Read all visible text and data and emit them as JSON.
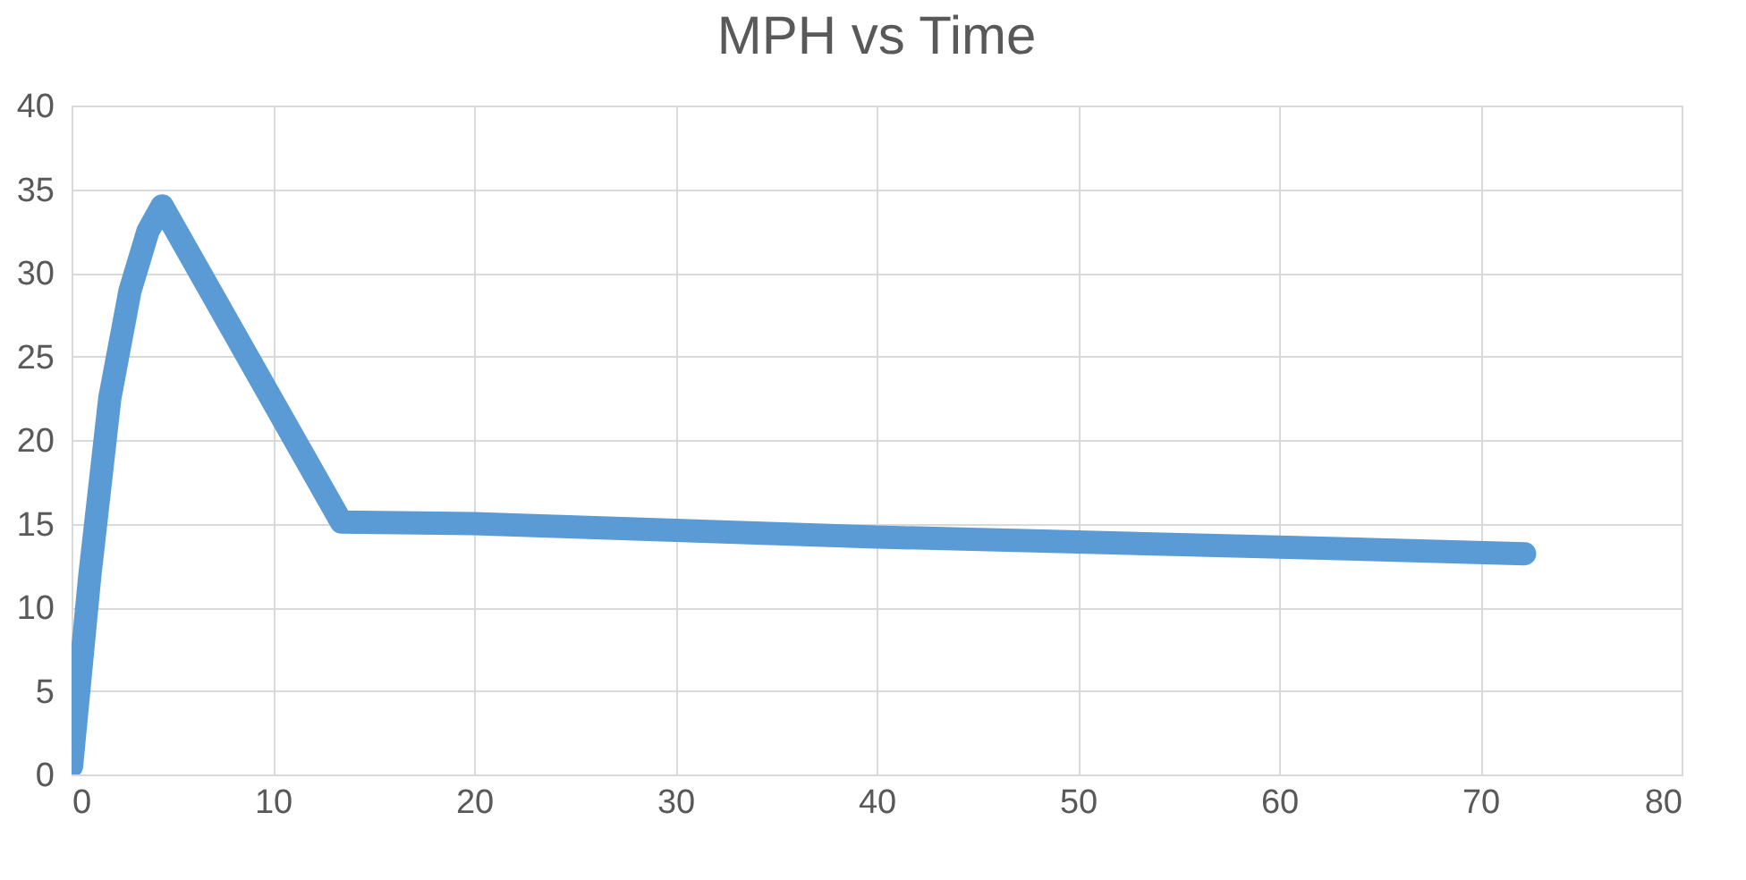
{
  "chart_data": {
    "type": "line",
    "title": "MPH vs Time",
    "series": [
      {
        "color": "#5b9bd5",
        "x": [
          0,
          0.9,
          1.9,
          2.9,
          3.8,
          4.5,
          13.4,
          20,
          30,
          40,
          50,
          60,
          72.2
        ],
        "values": [
          0.5,
          11.8,
          22.5,
          28.9,
          32.5,
          34,
          15.1,
          15,
          14.6,
          14.2,
          13.9,
          13.6,
          13.2
        ]
      }
    ],
    "xlim": [
      0,
      80
    ],
    "xticks": [
      0,
      10,
      20,
      30,
      40,
      50,
      60,
      70,
      80
    ],
    "ylim": [
      0,
      40
    ],
    "yticks": [
      0,
      5,
      10,
      15,
      20,
      25,
      30,
      35,
      40
    ],
    "grid": true,
    "line_style": "solid"
  }
}
